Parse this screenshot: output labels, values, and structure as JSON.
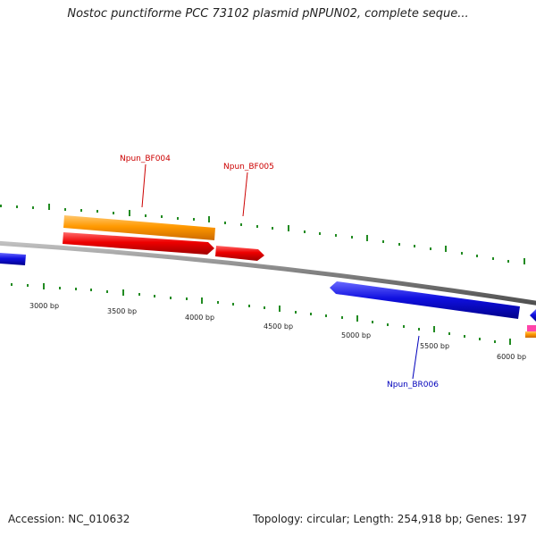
{
  "title": "Nostoc punctiforme PCC 73102 plasmid pNPUN02, complete seque...",
  "footer": {
    "accession": "Accession: NC_010632",
    "summary": "Topology: circular; Length: 254,918 bp; Genes: 197"
  },
  "colors": {
    "backbone": "#808080",
    "tick": "#228b22",
    "forward_label": "#cc0000",
    "reverse_label": "#0000bb",
    "orange": "#ff9900",
    "red": "#ee0000",
    "blue": "#1010e0",
    "pink": "#ff44aa"
  },
  "scale_labels": [
    "3000 bp",
    "3500 bp",
    "4000 bp",
    "4500 bp",
    "5000 bp",
    "5500 bp",
    "6000 bp"
  ],
  "gene_labels": [
    {
      "text": "Npun_BF004",
      "strand": "forward"
    },
    {
      "text": "Npun_BF005",
      "strand": "forward"
    },
    {
      "text": "Npun_BR006",
      "strand": "reverse"
    }
  ]
}
